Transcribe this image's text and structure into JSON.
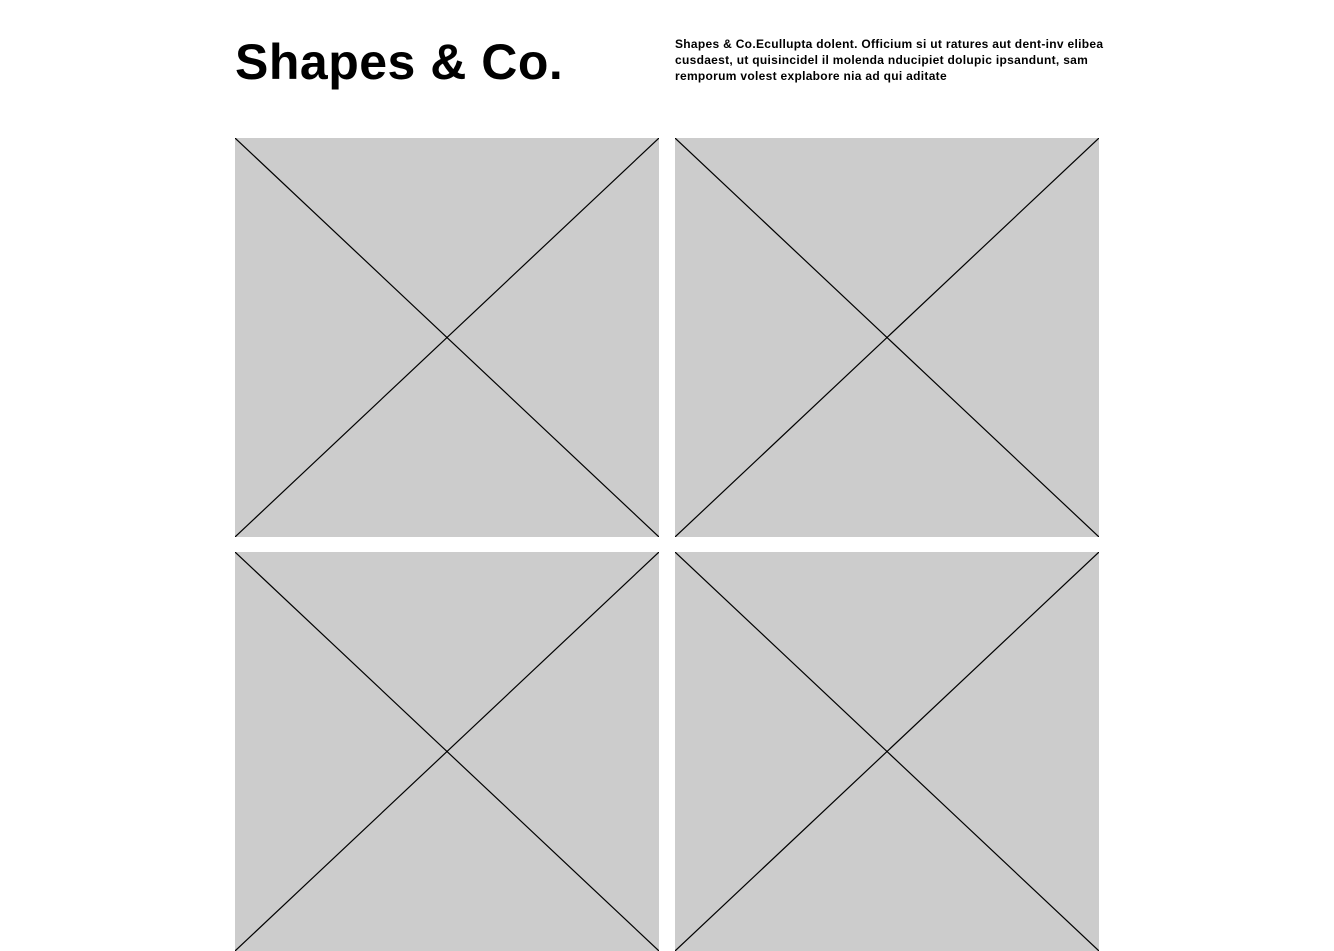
{
  "header": {
    "title": "Shapes & Co.",
    "intro": "Shapes & Co.Ecullupta dolent. Officium si ut ratures aut dent-inv elibea cusdaest, ut quisincidel il molenda nducipiet dolupic ipsandunt, sam remporum volest explabore nia ad qui aditate"
  },
  "gallery": {
    "placeholder_color": "#cccccc",
    "placeholder_icon": "image-placeholder-cross",
    "tiles": [
      {
        "id": "tile-1"
      },
      {
        "id": "tile-2"
      },
      {
        "id": "tile-3"
      },
      {
        "id": "tile-4"
      }
    ]
  }
}
